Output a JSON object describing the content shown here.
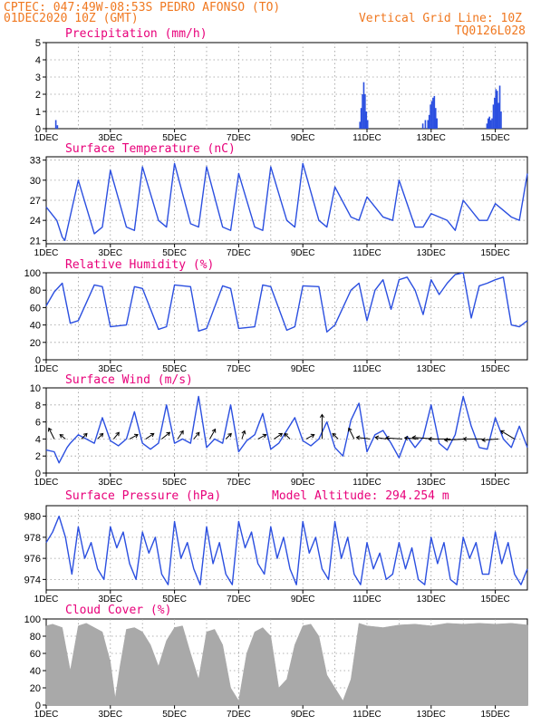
{
  "header": {
    "line1": "CPTEC:   047:49W-08:53S  PEDRO AFONSO (TO)",
    "line2": "01DEC2020 10Z (GMT)",
    "grid_note": "Vertical Grid Line: 10Z",
    "code": "TQ0126L028"
  },
  "x_ticks": [
    "1DEC",
    "3DEC",
    "5DEC",
    "7DEC",
    "9DEC",
    "11DEC",
    "13DEC",
    "15DEC"
  ],
  "x_tick_days": [
    0,
    2,
    4,
    6,
    8,
    10,
    12,
    14
  ],
  "x_range_days": [
    0,
    15
  ],
  "colors": {
    "line": "#2b4fe0",
    "bars": "#2b4fe0",
    "cloud": "#a9a9a9",
    "title": "#e8007a",
    "header": "#f07820"
  },
  "chart_data": [
    {
      "type": "bar",
      "title": "Precipitation (mm/h)",
      "ylim": [
        0,
        5
      ],
      "yticks": [
        0,
        1,
        2,
        3,
        4,
        5
      ],
      "x": [
        0.3,
        0.35,
        9.78,
        9.82,
        9.86,
        9.9,
        9.94,
        9.98,
        10.02,
        11.74,
        11.82,
        11.9,
        11.94,
        11.98,
        12.02,
        12.06,
        12.1,
        12.14,
        12.18,
        13.74,
        13.78,
        13.82,
        13.86,
        13.9,
        13.94,
        13.98,
        14.02,
        14.06,
        14.1,
        14.14,
        14.18
      ],
      "values": [
        0.5,
        0.2,
        0.4,
        1.2,
        2.0,
        2.7,
        2.0,
        1.0,
        0.5,
        0.3,
        0.5,
        0.5,
        0.8,
        1.4,
        1.6,
        1.8,
        1.9,
        1.2,
        0.6,
        0.3,
        0.6,
        0.7,
        0.5,
        0.6,
        1.4,
        1.8,
        2.3,
        2.2,
        1.5,
        2.5,
        1.0
      ]
    },
    {
      "type": "line",
      "title": "Surface Temperature (nC)",
      "ylim": [
        20.5,
        33.5
      ],
      "yticks": [
        21,
        24,
        27,
        30,
        33
      ],
      "x": [
        0,
        0.33,
        0.5,
        0.58,
        1.0,
        1.5,
        1.75,
        2.0,
        2.5,
        2.75,
        3.0,
        3.5,
        3.75,
        4.0,
        4.5,
        4.75,
        5.0,
        5.5,
        5.75,
        6.0,
        6.5,
        6.75,
        7.0,
        7.5,
        7.75,
        8.0,
        8.5,
        8.75,
        9.0,
        9.5,
        9.75,
        10.0,
        10.5,
        10.8,
        11.0,
        11.5,
        11.75,
        12.0,
        12.5,
        12.75,
        13.0,
        13.5,
        13.75,
        14.0,
        14.5,
        14.75,
        15.0
      ],
      "values": [
        26,
        24,
        21.5,
        21,
        30,
        22,
        23,
        31.5,
        23,
        22.5,
        32,
        24,
        23,
        32.5,
        23.5,
        23,
        32,
        23,
        22.5,
        31,
        23,
        22.5,
        32,
        24,
        23,
        32.5,
        24,
        23,
        29,
        24.5,
        24,
        27.5,
        24.5,
        24,
        30,
        23,
        23,
        25,
        24,
        22.5,
        27,
        24,
        24,
        26.5,
        24.5,
        24,
        31
      ]
    },
    {
      "type": "line",
      "title": "Relative Humidity (%)",
      "ylim": [
        0,
        100
      ],
      "yticks": [
        0,
        20,
        40,
        60,
        80,
        100
      ],
      "x": [
        0,
        0.25,
        0.5,
        0.75,
        1.0,
        1.5,
        1.75,
        2.0,
        2.5,
        2.75,
        3.0,
        3.5,
        3.75,
        4.0,
        4.5,
        4.75,
        5.0,
        5.5,
        5.75,
        6.0,
        6.5,
        6.75,
        7.0,
        7.5,
        7.75,
        8.0,
        8.5,
        8.75,
        9.0,
        9.5,
        9.75,
        10.0,
        10.25,
        10.5,
        10.75,
        11.0,
        11.25,
        11.5,
        11.75,
        12.0,
        12.25,
        12.5,
        12.75,
        13.0,
        13.25,
        13.5,
        13.75,
        14.0,
        14.25,
        14.5,
        14.75,
        15.0
      ],
      "values": [
        62,
        78,
        88,
        42,
        45,
        86,
        84,
        38,
        40,
        84,
        82,
        35,
        38,
        86,
        84,
        33,
        36,
        85,
        82,
        36,
        38,
        86,
        84,
        34,
        38,
        85,
        84,
        32,
        40,
        80,
        88,
        45,
        80,
        92,
        58,
        92,
        95,
        80,
        52,
        92,
        75,
        88,
        98,
        100,
        48,
        85,
        88,
        92,
        95,
        40,
        38,
        45
      ]
    },
    {
      "type": "line",
      "title": "Surface Wind (m/s)",
      "ylim": [
        0,
        10
      ],
      "yticks": [
        0,
        2,
        4,
        6,
        8,
        10
      ],
      "x": [
        0,
        0.25,
        0.4,
        0.65,
        0.75,
        1.0,
        1.25,
        1.5,
        1.75,
        2.0,
        2.25,
        2.5,
        2.75,
        3.0,
        3.25,
        3.5,
        3.75,
        4.0,
        4.25,
        4.5,
        4.75,
        5.0,
        5.25,
        5.5,
        5.75,
        6.0,
        6.25,
        6.5,
        6.75,
        7.0,
        7.25,
        7.5,
        7.75,
        8.0,
        8.25,
        8.5,
        8.75,
        9.0,
        9.25,
        9.5,
        9.75,
        10.0,
        10.25,
        10.5,
        10.75,
        11.0,
        11.25,
        11.5,
        11.75,
        12.0,
        12.25,
        12.5,
        12.75,
        13.0,
        13.25,
        13.5,
        13.75,
        14.0,
        14.25,
        14.5,
        14.75,
        15.0
      ],
      "values": [
        2.7,
        2.5,
        1.2,
        3.0,
        3.5,
        4.5,
        4.0,
        3.5,
        6.5,
        3.8,
        3.2,
        4.0,
        7.2,
        3.5,
        2.8,
        3.5,
        8.0,
        3.5,
        4.0,
        3.5,
        9.0,
        3.0,
        4.0,
        3.5,
        8.0,
        2.5,
        3.8,
        4.5,
        7.0,
        2.8,
        3.5,
        5.0,
        6.5,
        3.8,
        3.2,
        4.0,
        6.0,
        3.0,
        2.0,
        6.2,
        8.2,
        2.5,
        4.5,
        5.0,
        3.5,
        1.8,
        4.3,
        3.0,
        4.2,
        8.0,
        3.5,
        2.7,
        4.5,
        9.0,
        5.5,
        3.0,
        2.8,
        6.5,
        4.0,
        3.0,
        5.5,
        3.0
      ],
      "vectors": {
        "x": [
          0.25,
          0.6,
          1.1,
          1.6,
          2.1,
          2.6,
          3.1,
          3.6,
          4.1,
          4.6,
          5.1,
          5.6,
          6.1,
          6.6,
          7.1,
          7.6,
          8.1,
          8.6,
          9.1,
          9.6,
          10.1,
          10.6,
          11.1,
          11.6,
          12.1,
          12.6,
          13.1,
          13.6,
          14.1,
          14.6
        ],
        "u": [
          -1.0,
          -1.0,
          1.0,
          1.0,
          1.0,
          1.5,
          1.5,
          1.5,
          1.0,
          1.0,
          1.0,
          1.0,
          0.5,
          1.5,
          1.5,
          -1.0,
          1.5,
          0,
          -1.0,
          -1.0,
          -2.5,
          -2.0,
          -3.0,
          -2.5,
          -4.0,
          -4.0,
          -4.0,
          -3.5,
          -3.0,
          -2.5
        ],
        "v": [
          2.0,
          0.8,
          1.0,
          1.0,
          1.2,
          0.8,
          1.0,
          1.2,
          1.5,
          1.2,
          1.8,
          1.0,
          1.5,
          0.8,
          1.0,
          1.0,
          0.8,
          4.5,
          1.0,
          2.0,
          0.3,
          0.3,
          0.2,
          0.2,
          0.3,
          0,
          -0.2,
          0,
          -0.2,
          1.5
        ]
      }
    },
    {
      "type": "line",
      "title": "Surface Pressure (hPa)",
      "annotation": "Model Altitude: 294.254 m",
      "ylim": [
        973,
        981
      ],
      "yticks": [
        974,
        976,
        978,
        980
      ],
      "x": [
        0,
        0.2,
        0.4,
        0.6,
        0.8,
        1.0,
        1.2,
        1.4,
        1.6,
        1.8,
        2.0,
        2.2,
        2.4,
        2.6,
        2.8,
        3.0,
        3.2,
        3.4,
        3.6,
        3.8,
        4.0,
        4.2,
        4.4,
        4.6,
        4.8,
        5.0,
        5.2,
        5.4,
        5.6,
        5.8,
        6.0,
        6.2,
        6.4,
        6.6,
        6.8,
        7.0,
        7.2,
        7.4,
        7.6,
        7.8,
        8.0,
        8.2,
        8.4,
        8.6,
        8.8,
        9.0,
        9.2,
        9.4,
        9.6,
        9.8,
        10.0,
        10.2,
        10.4,
        10.6,
        10.8,
        11.0,
        11.2,
        11.4,
        11.6,
        11.8,
        12.0,
        12.2,
        12.4,
        12.6,
        12.8,
        13.0,
        13.2,
        13.4,
        13.6,
        13.8,
        14.0,
        14.2,
        14.4,
        14.6,
        14.8,
        15.0
      ],
      "values": [
        977.5,
        978.5,
        980,
        978,
        974.5,
        979,
        976,
        977.5,
        975,
        974,
        979,
        977,
        978.5,
        975.5,
        974,
        978.5,
        976.5,
        978,
        974.5,
        973.5,
        979.5,
        976,
        977.5,
        975,
        973.5,
        979,
        975.5,
        977.5,
        974.5,
        973.5,
        979.5,
        977,
        978.5,
        975.5,
        974.5,
        979,
        976,
        978,
        975,
        973.5,
        979.5,
        976.5,
        978,
        975,
        974,
        979.5,
        976,
        978,
        974.5,
        973.5,
        977.5,
        975,
        976.5,
        974,
        974.5,
        977.5,
        975,
        977,
        974,
        973.5,
        978,
        975.5,
        977.5,
        974,
        973.5,
        978,
        976,
        977.5,
        974.5,
        974.5,
        978.5,
        975.5,
        977.5,
        974.5,
        973.5,
        975
      ]
    },
    {
      "type": "area",
      "title": "Cloud Cover (%)",
      "ylim": [
        0,
        100
      ],
      "yticks": [
        0,
        20,
        40,
        60,
        80,
        100
      ],
      "x": [
        0,
        0.2,
        0.5,
        0.75,
        1.0,
        1.25,
        1.5,
        1.75,
        2.0,
        2.15,
        2.3,
        2.5,
        2.75,
        3.0,
        3.25,
        3.5,
        3.75,
        4.0,
        4.25,
        4.5,
        4.75,
        5.0,
        5.25,
        5.5,
        5.75,
        6.0,
        6.25,
        6.5,
        6.75,
        7.0,
        7.25,
        7.5,
        7.75,
        8.0,
        8.25,
        8.5,
        8.75,
        9.0,
        9.25,
        9.5,
        9.75,
        10.0,
        10.5,
        11.0,
        11.5,
        12.0,
        12.5,
        13.0,
        13.5,
        14.0,
        14.5,
        15.0
      ],
      "values": [
        92,
        94,
        90,
        40,
        92,
        95,
        90,
        85,
        50,
        8,
        45,
        88,
        90,
        85,
        70,
        45,
        75,
        90,
        92,
        60,
        30,
        85,
        88,
        70,
        20,
        5,
        60,
        85,
        90,
        80,
        20,
        30,
        70,
        92,
        94,
        80,
        35,
        20,
        5,
        30,
        95,
        92,
        90,
        93,
        94,
        92,
        95,
        94,
        95,
        94,
        95,
        93
      ]
    }
  ]
}
